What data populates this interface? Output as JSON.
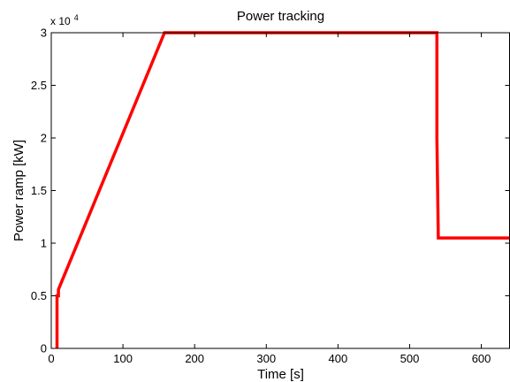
{
  "chart_data": {
    "type": "line",
    "title": "Power tracking",
    "xlabel": "Time [s]",
    "ylabel": "Power ramp [kW]",
    "y_multiplier": {
      "base": "x 10",
      "exponent": "4"
    },
    "xlim": [
      0,
      640
    ],
    "ylim": [
      0,
      30000
    ],
    "xticks": [
      0,
      100,
      200,
      300,
      400,
      500,
      600
    ],
    "xtick_labels": [
      "0",
      "100",
      "200",
      "300",
      "400",
      "500",
      "600"
    ],
    "yticks": [
      0,
      5000,
      10000,
      15000,
      20000,
      25000,
      30000
    ],
    "ytick_labels": [
      "0",
      "0.5",
      "1",
      "1.5",
      "2",
      "2.5",
      "3"
    ],
    "grid": false,
    "series": [
      {
        "color": "#ff0000",
        "x": [
          8,
          8,
          10,
          10,
          158,
          538,
          538,
          540,
          640
        ],
        "y": [
          0,
          5000,
          5000,
          5600,
          30000,
          30000,
          20000,
          10500,
          10500
        ]
      }
    ]
  }
}
